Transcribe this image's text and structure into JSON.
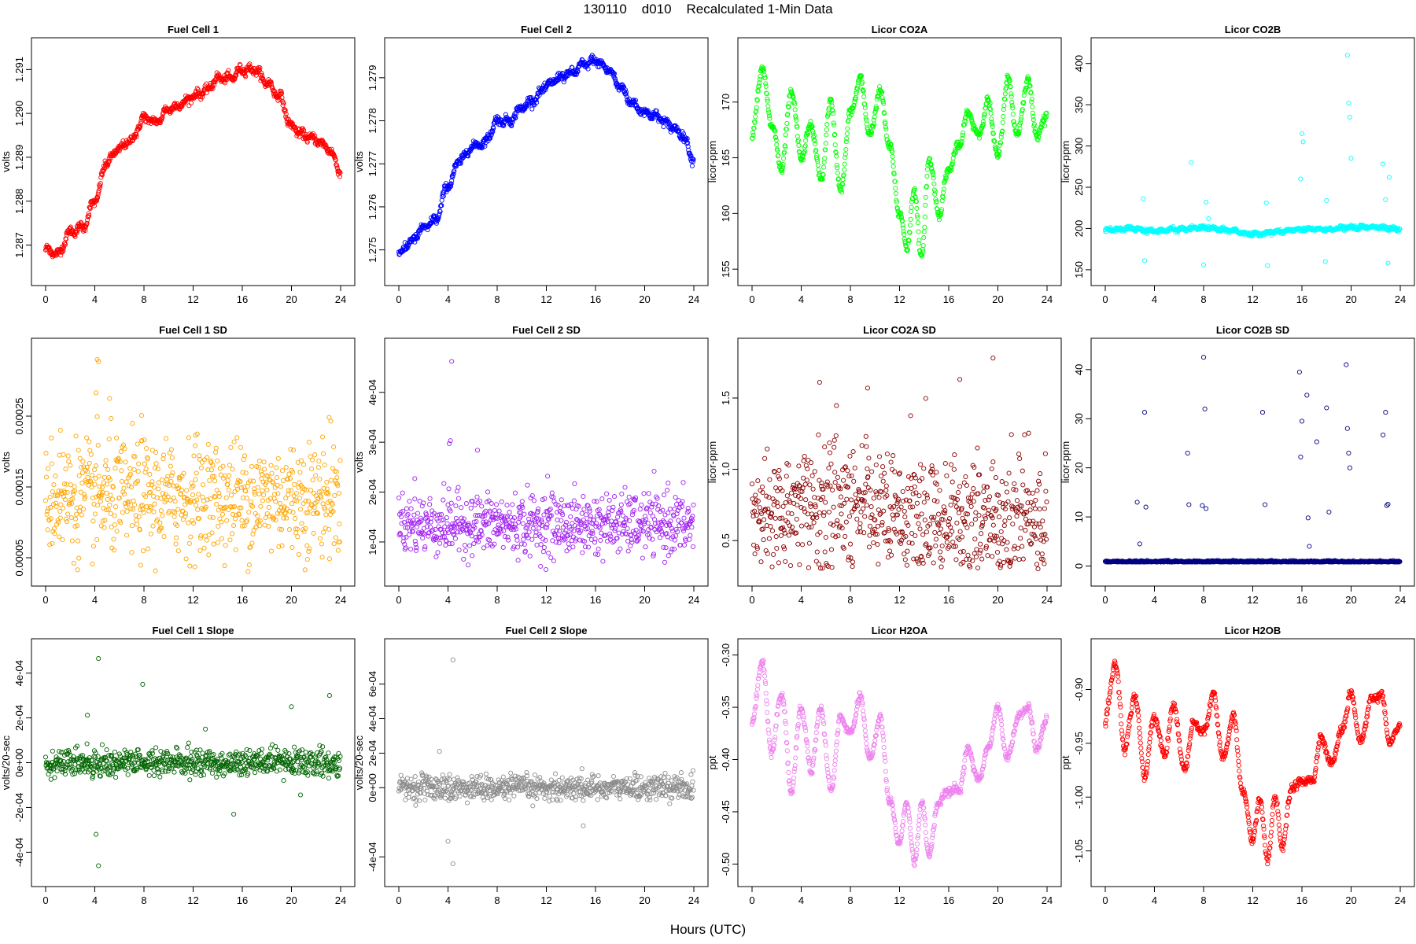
{
  "page": {
    "suptitle": "130110    d010    Recalculated 1-Min Data",
    "common_xlabel": "Hours (UTC)"
  },
  "chart_data": [
    {
      "id": "fc1",
      "type": "scatter",
      "title": "Fuel Cell 1",
      "ylabel": "volts",
      "color": "#ff0000",
      "xlim": [
        0,
        24
      ],
      "xticks": [
        0,
        4,
        8,
        12,
        16,
        20,
        24
      ],
      "ylim": [
        1.2864,
        1.2914
      ],
      "yticks": [
        1.287,
        1.288,
        1.289,
        1.29,
        1.291
      ],
      "ytick_labels": [
        "1.287",
        "1.288",
        "1.289",
        "1.290",
        "1.291"
      ],
      "series_shape": "rising-falling",
      "x": [
        0,
        1,
        2,
        3,
        4,
        5,
        6,
        7,
        8,
        9,
        10,
        11,
        12,
        13,
        14,
        15,
        16,
        17,
        18,
        19,
        20,
        21,
        22,
        23,
        24
      ],
      "y": [
        1.2869,
        1.2868,
        1.2873,
        1.2874,
        1.288,
        1.2889,
        1.2892,
        1.2894,
        1.2899,
        1.2898,
        1.2901,
        1.2902,
        1.2904,
        1.2905,
        1.2908,
        1.2908,
        1.291,
        1.291,
        1.2907,
        1.2904,
        1.2897,
        1.2895,
        1.2894,
        1.2892,
        1.2887
      ]
    },
    {
      "id": "fc2",
      "type": "scatter",
      "title": "Fuel Cell 2",
      "ylabel": "volts",
      "color": "#0000ff",
      "xlim": [
        0,
        24
      ],
      "xticks": [
        0,
        4,
        8,
        12,
        16,
        20,
        24
      ],
      "ylim": [
        1.2745,
        1.2796
      ],
      "yticks": [
        1.275,
        1.276,
        1.277,
        1.278,
        1.279
      ],
      "ytick_labels": [
        "1.275",
        "1.276",
        "1.277",
        "1.278",
        "1.279"
      ],
      "x": [
        0,
        1,
        2,
        3,
        4,
        5,
        6,
        7,
        8,
        9,
        10,
        11,
        12,
        13,
        14,
        15,
        16,
        17,
        18,
        19,
        20,
        21,
        22,
        23,
        24
      ],
      "y": [
        1.2749,
        1.2752,
        1.2755,
        1.2757,
        1.2765,
        1.2771,
        1.2774,
        1.2775,
        1.278,
        1.278,
        1.2783,
        1.2785,
        1.2788,
        1.279,
        1.2791,
        1.2793,
        1.2794,
        1.2792,
        1.2788,
        1.2784,
        1.2782,
        1.2781,
        1.2779,
        1.2777,
        1.2771
      ]
    },
    {
      "id": "co2a",
      "type": "scatter",
      "title": "Licor CO2A",
      "ylabel": "licor-ppm",
      "color": "#00ff00",
      "xlim": [
        0,
        24
      ],
      "xticks": [
        0,
        4,
        8,
        12,
        16,
        20,
        24
      ],
      "ylim": [
        154.8,
        174.5
      ],
      "yticks": [
        155,
        160,
        165,
        170
      ],
      "ytick_labels": [
        "155",
        "160",
        "165",
        "170"
      ],
      "x": [
        0,
        0.8,
        1.6,
        2.4,
        3.2,
        4.0,
        4.8,
        5.6,
        6.4,
        7.2,
        8.0,
        8.8,
        9.6,
        10.4,
        11.2,
        12.0,
        12.6,
        13.2,
        13.8,
        14.4,
        15.2,
        16.0,
        16.8,
        17.6,
        18.4,
        19.2,
        20.0,
        20.8,
        21.6,
        22.4,
        23.2,
        24.0
      ],
      "y": [
        167,
        173,
        168,
        164,
        171,
        165,
        168,
        163,
        170,
        162,
        169,
        172,
        167,
        171,
        166,
        160,
        157,
        162,
        156,
        165,
        160,
        164,
        166,
        169,
        167,
        170,
        165,
        172,
        167,
        172,
        167,
        169
      ]
    },
    {
      "id": "co2b",
      "type": "scatter",
      "title": "Licor CO2B",
      "ylabel": "licor-ppm",
      "color": "#00ffff",
      "xlim": [
        0,
        24
      ],
      "xticks": [
        0,
        4,
        8,
        12,
        16,
        20,
        24
      ],
      "ylim": [
        148,
        414
      ],
      "yticks": [
        150,
        200,
        250,
        300,
        350,
        400
      ],
      "ytick_labels": [
        "150",
        "200",
        "250",
        "300",
        "350",
        "400"
      ],
      "x": [
        0,
        2,
        4,
        6,
        8,
        10,
        12,
        14,
        16,
        18,
        20,
        22,
        24
      ],
      "y": [
        198,
        200,
        197,
        199,
        201,
        198,
        193,
        196,
        199,
        199,
        201,
        202,
        199
      ],
      "outliers_x": [
        3.1,
        3.2,
        7.0,
        8.0,
        8.2,
        8.4,
        13.1,
        13.2,
        15.9,
        16.0,
        16.1,
        17.9,
        18.0,
        19.7,
        19.8,
        19.9,
        20.0,
        22.6,
        22.8,
        23.0,
        23.1
      ],
      "outliers_y": [
        236,
        161,
        280,
        156,
        232,
        212,
        231,
        155,
        260,
        315,
        305,
        160,
        234,
        410,
        352,
        335,
        285,
        278,
        235,
        158,
        262
      ]
    },
    {
      "id": "fc1sd",
      "type": "scatter",
      "title": "Fuel Cell 1 SD",
      "ylabel": "volts",
      "color": "#ffa500",
      "xlim": [
        0,
        24
      ],
      "xticks": [
        0,
        4,
        8,
        12,
        16,
        20,
        24
      ],
      "ylim": [
        3e-05,
        0.00034
      ],
      "yticks": [
        5e-05,
        0.00015,
        0.00025
      ],
      "ytick_labels": [
        "0.00005",
        "0.00015",
        "0.00025"
      ],
      "center": 0.000135,
      "spread": 4e-05,
      "outliers_x": [
        4.2,
        4.3,
        4.1,
        5.2,
        1.2,
        7.8,
        12.2,
        22.6,
        23.2
      ],
      "outliers_y": [
        0.00033,
        0.000327,
        0.000283,
        0.000275,
        0.00023,
        0.000251,
        0.000223,
        0.000197,
        0.000243
      ]
    },
    {
      "id": "fc2sd",
      "type": "scatter",
      "title": "Fuel Cell 2 SD",
      "ylabel": "volts",
      "color": "#a020f0",
      "xlim": [
        0,
        24
      ],
      "xticks": [
        0,
        4,
        8,
        12,
        16,
        20,
        24
      ],
      "ylim": [
        4e-05,
        0.00048
      ],
      "yticks": [
        0.0001,
        0.0002,
        0.0003,
        0.0004
      ],
      "ytick_labels": [
        "1e-04",
        "2e-04",
        "3e-04",
        "4e-04"
      ],
      "center": 0.000135,
      "spread": 3e-05,
      "outliers_x": [
        4.3,
        4.1,
        4.2,
        6.4,
        1.3,
        12.1,
        21.9
      ],
      "outliers_y": [
        0.000462,
        0.000297,
        0.000303,
        0.000284,
        0.000227,
        0.000232,
        0.000218
      ]
    },
    {
      "id": "co2asd",
      "type": "scatter",
      "title": "Licor CO2A SD",
      "ylabel": "licor-ppm",
      "color": "#8b0000",
      "xlim": [
        0,
        24
      ],
      "xticks": [
        0,
        4,
        8,
        12,
        16,
        20,
        24
      ],
      "ylim": [
        0.28,
        1.82
      ],
      "yticks": [
        0.5,
        1.0,
        1.5
      ],
      "ytick_labels": [
        "0.5",
        "1.0",
        "1.5"
      ],
      "center": 0.68,
      "spread": 0.22,
      "outliers_x": [
        5.5,
        9.4,
        16.9,
        19.6
      ],
      "outliers_y": [
        1.61,
        1.57,
        1.63,
        1.78
      ]
    },
    {
      "id": "co2bsd",
      "type": "scatter",
      "title": "Licor CO2B SD",
      "ylabel": "licor-ppm",
      "color": "#000080",
      "xlim": [
        0,
        24
      ],
      "xticks": [
        0,
        4,
        8,
        12,
        16,
        20,
        24
      ],
      "ylim": [
        -1.2,
        43.5
      ],
      "yticks": [
        0,
        10,
        20,
        30,
        40
      ],
      "ytick_labels": [
        "0",
        "10",
        "20",
        "30",
        "40"
      ],
      "center": 0.8,
      "spread": 0.25,
      "outliers_x": [
        2.8,
        3.2,
        3.3,
        2.6,
        6.7,
        6.8,
        8.0,
        8.1,
        7.9,
        8.2,
        12.8,
        13.0,
        15.8,
        15.9,
        16.0,
        16.4,
        16.5,
        17.2,
        18.0,
        19.6,
        19.7,
        19.8,
        19.9,
        22.6,
        22.8,
        22.9,
        23.0,
        16.6,
        18.2
      ],
      "outliers_y": [
        4.5,
        31.3,
        12.0,
        13.0,
        23.0,
        12.5,
        42.5,
        32.0,
        12.3,
        11.7,
        31.3,
        12.5,
        39.5,
        22.2,
        29.5,
        34.8,
        9.8,
        25.3,
        32.2,
        41.0,
        28.0,
        23.0,
        20.0,
        26.7,
        31.3,
        12.3,
        12.6,
        4.0,
        11.0
      ]
    },
    {
      "id": "fc1slope",
      "type": "scatter",
      "title": "Fuel Cell 1 Slope",
      "ylabel": "volts/20-sec",
      "color": "#006400",
      "xlim": [
        0,
        24
      ],
      "xticks": [
        0,
        4,
        8,
        12,
        16,
        20,
        24
      ],
      "ylim": [
        -0.00049,
        0.00049
      ],
      "yticks": [
        -0.0004,
        -0.0002,
        0,
        0.0002,
        0.0004
      ],
      "ytick_labels": [
        "-4e-04",
        "-2e-04",
        "0e+00",
        "2e-04",
        "4e-04"
      ],
      "center": 0.0,
      "spread": 3e-05,
      "outliers_x": [
        4.3,
        4.3,
        4.1,
        3.4,
        7.9,
        20.0,
        23.1,
        13.0,
        15.3
      ],
      "outliers_y": [
        0.000465,
        -0.00046,
        -0.00032,
        0.000212,
        0.00035,
        0.00025,
        0.0003,
        0.00015,
        -0.00023
      ]
    },
    {
      "id": "fc2slope",
      "type": "scatter",
      "title": "Fuel Cell 2 Slope",
      "ylabel": "volts/20-sec",
      "color": "#8c8c8c",
      "xlim": [
        0,
        24
      ],
      "xticks": [
        0,
        4,
        8,
        12,
        16,
        20,
        24
      ],
      "ylim": [
        -0.00049,
        0.00078
      ],
      "yticks": [
        -0.0004,
        0,
        0.0002,
        0.0004,
        0.0006
      ],
      "ytick_labels": [
        "-4e-04",
        "0e+00",
        "2e-04",
        "4e-04",
        "6e-04"
      ],
      "center": 0.0,
      "spread": 3.5e-05,
      "outliers_x": [
        4.4,
        4.4,
        4.0,
        3.3,
        15.0
      ],
      "outliers_y": [
        0.00074,
        -0.00044,
        -0.00031,
        0.00021,
        -0.00022
      ]
    },
    {
      "id": "h2oa",
      "type": "scatter",
      "title": "Licor H2OA",
      "ylabel": "ppt",
      "color": "#ee82ee",
      "xlim": [
        0,
        24
      ],
      "xticks": [
        0,
        4,
        8,
        12,
        16,
        20,
        24
      ],
      "ylim": [
        -0.508,
        -0.298
      ],
      "yticks": [
        -0.5,
        -0.45,
        -0.4,
        -0.35,
        -0.3
      ],
      "ytick_labels": [
        "-0.50",
        "-0.45",
        "-0.40",
        "-0.35",
        "-0.30"
      ],
      "x": [
        0,
        0.8,
        1.6,
        2.4,
        3.2,
        4.0,
        4.8,
        5.6,
        6.4,
        7.2,
        8.0,
        8.8,
        9.6,
        10.4,
        11.2,
        12.0,
        12.6,
        13.2,
        13.8,
        14.4,
        15.2,
        16.0,
        16.8,
        17.6,
        18.4,
        19.2,
        20.0,
        20.8,
        21.6,
        22.4,
        23.2,
        24.0
      ],
      "y": [
        -0.367,
        -0.305,
        -0.392,
        -0.335,
        -0.43,
        -0.35,
        -0.41,
        -0.35,
        -0.43,
        -0.36,
        -0.375,
        -0.34,
        -0.4,
        -0.36,
        -0.44,
        -0.48,
        -0.44,
        -0.5,
        -0.44,
        -0.49,
        -0.44,
        -0.43,
        -0.43,
        -0.39,
        -0.42,
        -0.39,
        -0.35,
        -0.4,
        -0.36,
        -0.35,
        -0.39,
        -0.36
      ]
    },
    {
      "id": "h2ob",
      "type": "scatter",
      "title": "Licor H2OB",
      "ylabel": "ppt",
      "color": "#ff0000",
      "xlim": [
        0,
        24
      ],
      "xticks": [
        0,
        4,
        8,
        12,
        16,
        20,
        24
      ],
      "ylim": [
        -1.07,
        -0.866
      ],
      "yticks": [
        -1.05,
        -1.0,
        -0.95,
        -0.9
      ],
      "ytick_labels": [
        "-1.05",
        "-1.00",
        "-0.95",
        "-0.90"
      ],
      "x": [
        0,
        0.8,
        1.6,
        2.4,
        3.2,
        4.0,
        4.8,
        5.6,
        6.4,
        7.2,
        8.0,
        8.8,
        9.6,
        10.4,
        11.2,
        12.0,
        12.6,
        13.2,
        13.8,
        14.4,
        15.2,
        16.0,
        16.8,
        17.6,
        18.4,
        19.2,
        20.0,
        20.8,
        21.6,
        22.4,
        23.2,
        24.0
      ],
      "y": [
        -0.93,
        -0.875,
        -0.955,
        -0.905,
        -0.98,
        -0.925,
        -0.96,
        -0.915,
        -0.975,
        -0.93,
        -0.94,
        -0.905,
        -0.965,
        -0.925,
        -0.995,
        -1.04,
        -1.0,
        -1.06,
        -1.0,
        -1.045,
        -0.99,
        -0.985,
        -0.985,
        -0.945,
        -0.97,
        -0.94,
        -0.905,
        -0.95,
        -0.91,
        -0.905,
        -0.95,
        -0.93
      ]
    }
  ]
}
